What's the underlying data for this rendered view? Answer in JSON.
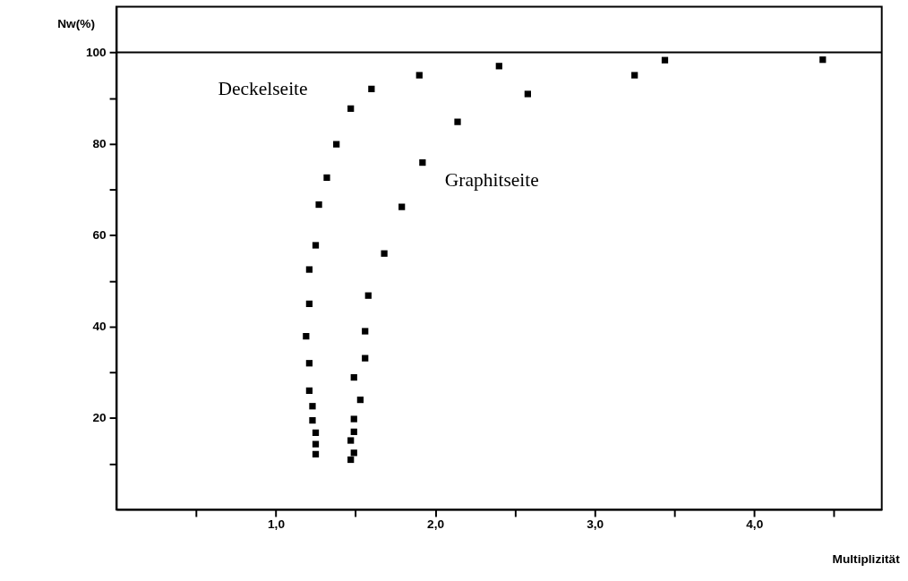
{
  "chart_data": {
    "type": "scatter",
    "xlabel": "Multiplizität",
    "ylabel": "Nw(%)",
    "xlim": [
      0,
      4.8
    ],
    "ylim": [
      0,
      110
    ],
    "xticks": [
      {
        "value": 0.5,
        "label": null
      },
      {
        "value": 1.0,
        "label": "1,0"
      },
      {
        "value": 1.5,
        "label": null
      },
      {
        "value": 2.0,
        "label": "2,0"
      },
      {
        "value": 2.5,
        "label": null
      },
      {
        "value": 3.0,
        "label": "3,0"
      },
      {
        "value": 3.5,
        "label": null
      },
      {
        "value": 4.0,
        "label": "4,0"
      },
      {
        "value": 4.5,
        "label": null
      }
    ],
    "yticks": [
      {
        "value": 10,
        "label": null
      },
      20,
      {
        "value": 30,
        "label": null
      },
      40,
      {
        "value": 50,
        "label": null
      },
      60,
      {
        "value": 70,
        "label": null
      },
      80,
      {
        "value": 90,
        "label": null
      },
      100
    ],
    "grid": false,
    "marker": "square",
    "ref_lines": [
      {
        "axis": "y",
        "value": 100,
        "label": null,
        "color": "#000000"
      }
    ],
    "series": [
      {
        "name": "Deckelseite",
        "color": "#000000",
        "x": [
          1.25,
          1.25,
          1.25,
          1.23,
          1.23,
          1.21,
          1.21,
          1.19,
          1.21,
          1.21,
          1.25,
          1.27,
          1.32,
          1.38,
          1.47,
          1.6,
          1.9,
          2.4
        ],
        "values": [
          12.1,
          14.3,
          16.8,
          19.5,
          22.6,
          26.0,
          32.0,
          37.9,
          45.0,
          52.5,
          57.8,
          66.7,
          72.6,
          79.9,
          87.7,
          92.0,
          95.0,
          97.0
        ]
      },
      {
        "name": "Graphitseite",
        "color": "#000000",
        "x": [
          1.47,
          1.49,
          1.47,
          1.49,
          1.49,
          1.53,
          1.49,
          1.56,
          1.56,
          1.58,
          1.68,
          1.79,
          1.92,
          2.14,
          2.58,
          3.25,
          3.44,
          4.43
        ],
        "values": [
          10.9,
          12.4,
          15.1,
          17.0,
          19.8,
          24.0,
          28.9,
          33.1,
          39.0,
          46.8,
          56.0,
          66.2,
          75.9,
          84.8,
          90.9,
          95.0,
          98.3,
          98.4
        ]
      }
    ]
  }
}
